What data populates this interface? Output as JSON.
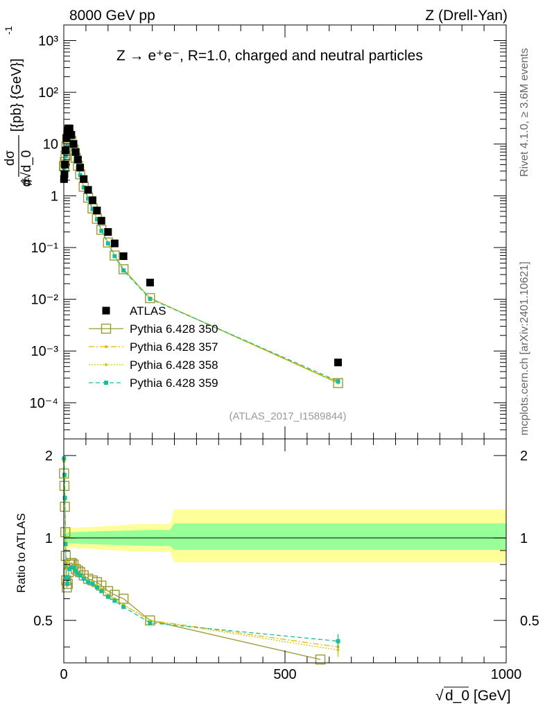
{
  "header": {
    "left": "8000 GeV pp",
    "right": "Z (Drell-Yan)"
  },
  "side_labels": {
    "rivet": "Rivet 4.1.0, ≥ 3.6M events",
    "mcplots": "mcplots.cern.ch [arXiv:2401.10621]"
  },
  "chart_data": [
    {
      "type": "scatter",
      "panel": "main",
      "title": "Z → e⁺e⁻, R=1.0, charged and neutral particles",
      "watermark": "(ATLAS_2017_I1589844)",
      "ylabel": "#dσ/d√d_0 [{pb} {GeV}]^-1",
      "xlabel": "√d_0 [GeV]",
      "xlim": [
        0,
        1000
      ],
      "ylim": [
        2e-05,
        2000
      ],
      "yscale": "log",
      "yticks": [
        {
          "value": 1000,
          "label": "10³"
        },
        {
          "value": 100,
          "label": "10²"
        },
        {
          "value": 10,
          "label": "10"
        },
        {
          "value": 1,
          "label": "1"
        },
        {
          "value": 0.1,
          "label": "10⁻¹"
        },
        {
          "value": 0.01,
          "label": "10⁻²"
        },
        {
          "value": 0.001,
          "label": "10⁻³"
        },
        {
          "value": 0.0001,
          "label": "10⁻⁴"
        }
      ],
      "series": [
        {
          "name": "ATLAS",
          "color": "#000000",
          "x": [
            0.5,
            1.5,
            2.5,
            4,
            6,
            8,
            10,
            13,
            17,
            22,
            27,
            32,
            37,
            45,
            55,
            65,
            75,
            85,
            100,
            115,
            135,
            195,
            620
          ],
          "values": [
            2.1,
            2.6,
            4.0,
            7.5,
            13.0,
            18.0,
            20.0,
            20.0,
            15.0,
            10.0,
            7.0,
            5.0,
            3.5,
            2.1,
            1.3,
            0.82,
            0.52,
            0.33,
            0.2,
            0.12,
            0.068,
            0.021,
            0.0006
          ]
        },
        {
          "name": "Pythia 6.428 350",
          "color": "#999933",
          "x": [
            0.5,
            1.5,
            2.5,
            4,
            6,
            8,
            10,
            13,
            17,
            22,
            27,
            32,
            37,
            45,
            55,
            65,
            75,
            85,
            100,
            115,
            135,
            195,
            620
          ],
          "values": [
            3.7,
            3.8,
            4.5,
            6.0,
            9.0,
            12.5,
            14.0,
            14.5,
            11.5,
            7.8,
            5.4,
            3.8,
            2.6,
            1.5,
            0.92,
            0.57,
            0.36,
            0.22,
            0.125,
            0.07,
            0.038,
            0.0105,
            0.00024
          ]
        },
        {
          "name": "Pythia 6.428 357",
          "color": "#e6b800",
          "x": [
            0.5,
            1.5,
            2.5,
            4,
            6,
            8,
            10,
            13,
            17,
            22,
            27,
            32,
            37,
            45,
            55,
            65,
            75,
            85,
            100,
            115,
            135,
            195,
            620
          ],
          "values": [
            3.5,
            3.7,
            4.4,
            5.9,
            8.8,
            12.2,
            13.8,
            14.2,
            11.2,
            7.6,
            5.3,
            3.7,
            2.55,
            1.48,
            0.9,
            0.56,
            0.355,
            0.215,
            0.122,
            0.069,
            0.037,
            0.0105,
            0.00025
          ]
        },
        {
          "name": "Pythia 6.428 358",
          "color": "#cccc00",
          "x": [
            0.5,
            1.5,
            2.5,
            4,
            6,
            8,
            10,
            13,
            17,
            22,
            27,
            32,
            37,
            45,
            55,
            65,
            75,
            85,
            100,
            115,
            135,
            195,
            620
          ],
          "values": [
            3.6,
            3.7,
            4.4,
            5.9,
            8.9,
            12.3,
            13.9,
            14.3,
            11.3,
            7.7,
            5.3,
            3.7,
            2.55,
            1.48,
            0.9,
            0.56,
            0.355,
            0.215,
            0.122,
            0.069,
            0.037,
            0.0105,
            0.00024
          ]
        },
        {
          "name": "Pythia 6.428 359",
          "color": "#1abc9c",
          "x": [
            0.5,
            1.5,
            2.5,
            4,
            6,
            8,
            10,
            13,
            17,
            22,
            27,
            32,
            37,
            45,
            55,
            65,
            75,
            85,
            100,
            115,
            135,
            195,
            620
          ],
          "values": [
            3.4,
            3.6,
            4.3,
            5.8,
            8.7,
            12.0,
            13.6,
            14.0,
            11.0,
            7.5,
            5.2,
            3.6,
            2.5,
            1.45,
            0.88,
            0.55,
            0.35,
            0.21,
            0.12,
            0.068,
            0.036,
            0.0102,
            0.00026
          ]
        }
      ]
    },
    {
      "type": "line",
      "panel": "ratio",
      "ylabel": "Ratio to ATLAS",
      "xlabel": "√d_0 [GeV]",
      "xlim": [
        0,
        1000
      ],
      "ylim": [
        0.35,
        2.3
      ],
      "yscale": "log",
      "yticks": [
        {
          "value": 0.5,
          "label": "0.5"
        },
        {
          "value": 1,
          "label": "1"
        },
        {
          "value": 2,
          "label": "2"
        }
      ],
      "xticks": [
        {
          "value": 0,
          "label": "0"
        },
        {
          "value": 500,
          "label": "500"
        },
        {
          "value": 1000,
          "label": "1000"
        }
      ],
      "band": {
        "x": [
          0,
          20,
          50,
          100,
          150,
          200,
          240,
          250,
          1000
        ],
        "outer_low": [
          0.91,
          0.92,
          0.915,
          0.905,
          0.895,
          0.89,
          0.89,
          0.815,
          0.815
        ],
        "outer_high": [
          1.1,
          1.09,
          1.095,
          1.105,
          1.12,
          1.125,
          1.125,
          1.27,
          1.27
        ],
        "inner_low": [
          0.96,
          0.955,
          0.95,
          0.945,
          0.94,
          0.935,
          0.935,
          0.905,
          0.905
        ],
        "inner_high": [
          1.045,
          1.05,
          1.055,
          1.06,
          1.065,
          1.07,
          1.07,
          1.13,
          1.13
        ]
      },
      "series": [
        {
          "name": "Pythia 6.428 350",
          "color": "#999933",
          "x": [
            0.5,
            1.5,
            2.5,
            3.5,
            4.5,
            5.5,
            7,
            9,
            11,
            13,
            15,
            18,
            22,
            27,
            32,
            37,
            45,
            55,
            65,
            75,
            85,
            100,
            115,
            135,
            195,
            580
          ],
          "values": [
            1.72,
            1.55,
            1.3,
            1.05,
            0.86,
            0.7,
            0.66,
            0.68,
            0.75,
            0.8,
            0.81,
            0.81,
            0.8,
            0.77,
            0.76,
            0.75,
            0.73,
            0.71,
            0.7,
            0.69,
            0.67,
            0.64,
            0.62,
            0.6,
            0.5,
            0.36
          ]
        },
        {
          "name": "Pythia 6.428 357",
          "color": "#e6b800",
          "x": [
            0.5,
            1.5,
            2.5,
            4,
            6,
            8,
            10,
            13,
            17,
            22,
            27,
            32,
            37,
            45,
            55,
            65,
            75,
            85,
            100,
            115,
            135,
            195,
            620
          ],
          "values": [
            1.9,
            1.65,
            1.38,
            0.95,
            0.72,
            0.69,
            0.72,
            0.78,
            0.79,
            0.79,
            0.77,
            0.75,
            0.74,
            0.72,
            0.7,
            0.69,
            0.67,
            0.65,
            0.62,
            0.6,
            0.57,
            0.5,
            0.4
          ]
        },
        {
          "name": "Pythia 6.428 358",
          "color": "#cccc00",
          "x": [
            0.5,
            1.5,
            2.5,
            4,
            6,
            8,
            10,
            13,
            17,
            22,
            27,
            32,
            37,
            45,
            55,
            65,
            75,
            85,
            100,
            115,
            135,
            195,
            620
          ],
          "values": [
            1.92,
            1.66,
            1.39,
            0.96,
            0.72,
            0.69,
            0.72,
            0.78,
            0.79,
            0.79,
            0.77,
            0.75,
            0.74,
            0.72,
            0.7,
            0.69,
            0.67,
            0.65,
            0.62,
            0.6,
            0.57,
            0.5,
            0.39
          ]
        },
        {
          "name": "Pythia 6.428 359",
          "color": "#1abc9c",
          "x": [
            0.5,
            1.5,
            2.5,
            4,
            6,
            8,
            10,
            13,
            17,
            22,
            27,
            32,
            37,
            45,
            55,
            65,
            75,
            85,
            100,
            115,
            135,
            195,
            620
          ],
          "values": [
            1.95,
            1.7,
            1.4,
            0.95,
            0.72,
            0.68,
            0.71,
            0.77,
            0.78,
            0.78,
            0.76,
            0.74,
            0.73,
            0.71,
            0.69,
            0.68,
            0.66,
            0.64,
            0.61,
            0.59,
            0.56,
            0.49,
            0.42
          ]
        }
      ]
    }
  ]
}
